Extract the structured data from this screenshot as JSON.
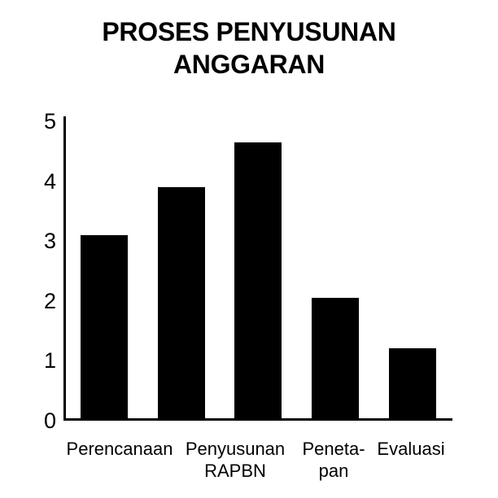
{
  "colors": {
    "background": "#ffffff",
    "bar": "#000000",
    "axis": "#000000",
    "text": "#000000"
  },
  "chart_data": {
    "type": "bar",
    "title": "PROSES PENYUSUNAN ANGGARAN",
    "xlabel": "",
    "ylabel": "",
    "ylim": [
      0,
      5
    ],
    "yticks": [
      0,
      1,
      2,
      3,
      4,
      5
    ],
    "grid": false,
    "legend": false,
    "bar_color": "#000000",
    "background_color": "#ffffff",
    "values": [
      3.1,
      3.9,
      4.65,
      2.05,
      1.2
    ],
    "categories": [
      "Perencanaan",
      "",
      "Penyusunan RAPBN",
      "Peneta-pan",
      "Evaluasi"
    ],
    "xtick_labels": [
      {
        "lines": [
          "Perencanaan"
        ]
      },
      {
        "lines": [
          "Penyusunan",
          "RAPBN"
        ]
      },
      {
        "lines": [
          "Peneta-",
          "pan"
        ]
      },
      {
        "lines": [
          "Evaluasi"
        ]
      }
    ]
  }
}
